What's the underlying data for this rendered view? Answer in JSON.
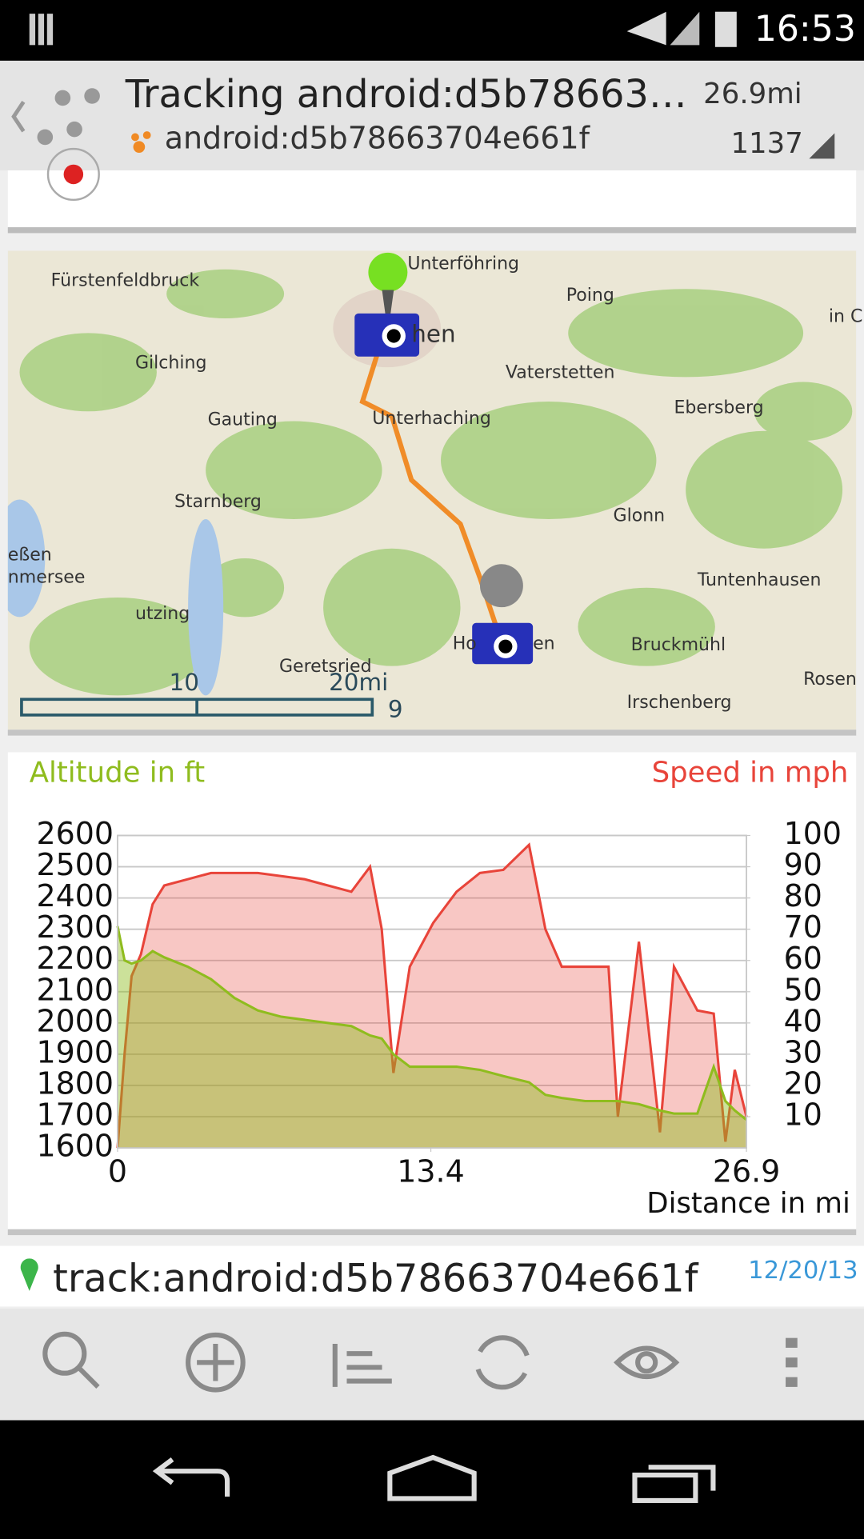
{
  "status_bar": {
    "time": "16:53"
  },
  "action_bar": {
    "title": "Tracking android:d5b78663…",
    "subtitle": "android:d5b78663704e661f",
    "distance": "26.9mi",
    "count": "1137"
  },
  "map": {
    "labels": [
      "Unterföhring",
      "Fürstenfeldbruck",
      "Poing",
      "in C",
      "Gilching",
      "hen",
      "Vaterstetten",
      "Ebersberg",
      "Gauting",
      "Unterhaching",
      "Starnberg",
      "Glonn",
      "eßen",
      "nmersee",
      "Tuntenhausen",
      "utzing",
      "Ho",
      "en",
      "Bruckmühl",
      "Geretsried",
      "Rosen",
      "Irschenberg"
    ],
    "scale": [
      "10",
      "20mi",
      "9"
    ]
  },
  "chart_data": {
    "type": "area",
    "title": "Altitude in ft",
    "title2": "Speed in mph",
    "x_label": "Distance in mi",
    "x": [
      0,
      0.3,
      0.6,
      1,
      1.5,
      2,
      3,
      4,
      5,
      6,
      7,
      8,
      9,
      10,
      10.8,
      11.3,
      11.8,
      12.5,
      13.5,
      14.5,
      15.5,
      16.5,
      17.6,
      18.3,
      19,
      20,
      21,
      21.4,
      22.3,
      23.2,
      23.8,
      24.8,
      25.5,
      26,
      26.4,
      26.9
    ],
    "series": [
      {
        "name": "Speed in mph",
        "color": "#e8443a",
        "axis": "y2",
        "values": [
          0,
          30,
          55,
          62,
          78,
          84,
          86,
          88,
          88,
          88,
          87,
          86,
          84,
          82,
          90,
          70,
          24,
          58,
          72,
          82,
          88,
          89,
          97,
          70,
          58,
          58,
          58,
          10,
          66,
          5,
          58,
          44,
          43,
          2,
          25,
          10
        ]
      },
      {
        "name": "Altitude in ft",
        "color": "#8fbc1e",
        "axis": "y",
        "values": [
          2310,
          2200,
          2190,
          2200,
          2230,
          2210,
          2180,
          2140,
          2080,
          2040,
          2020,
          2010,
          2000,
          1990,
          1960,
          1950,
          1900,
          1860,
          1860,
          1860,
          1850,
          1830,
          1810,
          1770,
          1760,
          1750,
          1750,
          1750,
          1740,
          1720,
          1710,
          1710,
          1860,
          1750,
          1720,
          1690
        ]
      }
    ],
    "xlim": [
      0,
      26.9
    ],
    "xticks": [
      0,
      13.4,
      26.9
    ],
    "ylim": [
      1600,
      2600
    ],
    "yticks": [
      1600,
      1700,
      1800,
      1900,
      2000,
      2100,
      2200,
      2300,
      2400,
      2500,
      2600
    ],
    "y2lim": [
      0,
      100
    ],
    "y2ticks": [
      10,
      20,
      30,
      40,
      50,
      60,
      70,
      80,
      90,
      100
    ],
    "grid": true
  },
  "track": {
    "name": "track:android:d5b78663704e661f",
    "date": "12/20/13"
  }
}
